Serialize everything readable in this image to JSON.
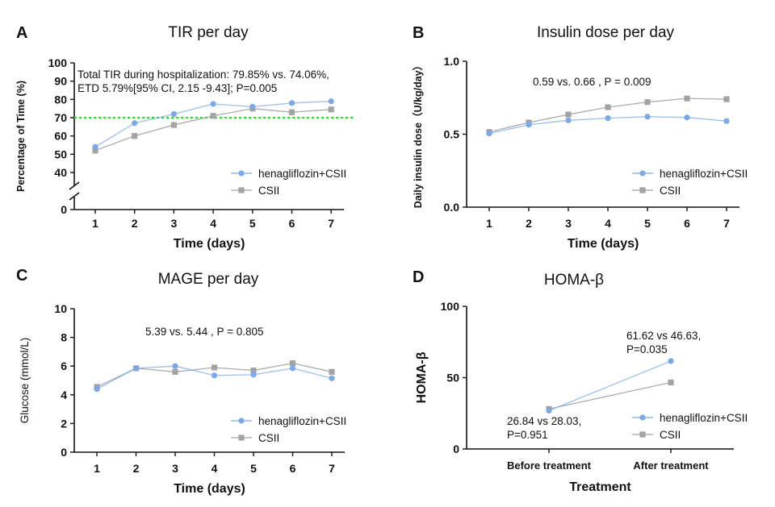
{
  "colors": {
    "henagliflozin": "#7aa9e8",
    "csii": "#a3a3a3",
    "target": "#39d43e",
    "axis": "#111111"
  },
  "chart_data": [
    {
      "id": "A",
      "letter": "A",
      "type": "line",
      "title": "TIR per day",
      "xlabel": "Time (days)",
      "ylabel": "Percentage of Time (%)",
      "x": [
        1,
        2,
        3,
        4,
        5,
        6,
        7
      ],
      "ylim": [
        0,
        100
      ],
      "axis_break": [
        0,
        40
      ],
      "yticks": [
        0,
        40,
        50,
        60,
        70,
        80,
        90,
        100
      ],
      "reference_line": 70,
      "annotation": [
        "Total TIR during  hospitalization: 79.85% vs. 74.06%,",
        "ETD 5.79%[95% CI, 2.15 -9.43]; P=0.005"
      ],
      "series": [
        {
          "name": "henagliflozin+CSII",
          "marker": "circle",
          "values": [
            54,
            67,
            72,
            77.5,
            76,
            78,
            79
          ]
        },
        {
          "name": "CSII",
          "marker": "square",
          "values": [
            52,
            60,
            66,
            71,
            75,
            73,
            74.5
          ]
        }
      ]
    },
    {
      "id": "B",
      "letter": "B",
      "type": "line",
      "title": "Insulin dose per day",
      "xlabel": "Time (days)",
      "ylabel": "Daily insulin dose（U/kg/day）",
      "x": [
        1,
        2,
        3,
        4,
        5,
        6,
        7
      ],
      "ylim": [
        0,
        1.0
      ],
      "yticks": [
        0.0,
        0.5,
        1.0
      ],
      "ytick_labels": [
        "0.0",
        "0.5",
        "1.0"
      ],
      "annotation": [
        "0.59 vs. 0.66 , P = 0.009"
      ],
      "series": [
        {
          "name": "henagliflozin+CSII",
          "marker": "circle",
          "values": [
            0.505,
            0.565,
            0.595,
            0.61,
            0.62,
            0.615,
            0.59
          ]
        },
        {
          "name": "CSII",
          "marker": "square",
          "values": [
            0.515,
            0.58,
            0.635,
            0.685,
            0.72,
            0.745,
            0.74
          ]
        }
      ]
    },
    {
      "id": "C",
      "letter": "C",
      "type": "line",
      "title": "MAGE per day",
      "xlabel": "Time (days)",
      "ylabel": "Glucose (mmol/L)",
      "x": [
        1,
        2,
        3,
        4,
        5,
        6,
        7
      ],
      "ylim": [
        0,
        10
      ],
      "yticks": [
        0,
        2,
        4,
        6,
        8,
        10
      ],
      "annotation": [
        "5.39 vs. 5.44 , P = 0.805"
      ],
      "series": [
        {
          "name": "henagliflozin+CSII",
          "marker": "circle",
          "values": [
            4.4,
            5.85,
            6.0,
            5.35,
            5.4,
            5.85,
            5.15
          ]
        },
        {
          "name": "CSII",
          "marker": "square",
          "values": [
            4.55,
            5.85,
            5.6,
            5.9,
            5.7,
            6.2,
            5.6
          ]
        }
      ]
    },
    {
      "id": "D",
      "letter": "D",
      "type": "line",
      "title": "HOMA-β",
      "xlabel": "Treatment",
      "ylabel": "HOMA-β",
      "categories": [
        "Before treatment",
        "After treatment"
      ],
      "ylim": [
        0,
        100
      ],
      "yticks": [
        0,
        50,
        100
      ],
      "annotation_top": [
        "61.62 vs 46.63,",
        "P=0.035"
      ],
      "annotation_bottom": [
        "26.84 vs 28.03,",
        "P=0.951"
      ],
      "series": [
        {
          "name": "henagliflozin+CSII",
          "marker": "circle",
          "values": [
            26.84,
            61.62
          ]
        },
        {
          "name": "CSII",
          "marker": "square",
          "values": [
            28.03,
            46.63
          ]
        }
      ]
    }
  ]
}
